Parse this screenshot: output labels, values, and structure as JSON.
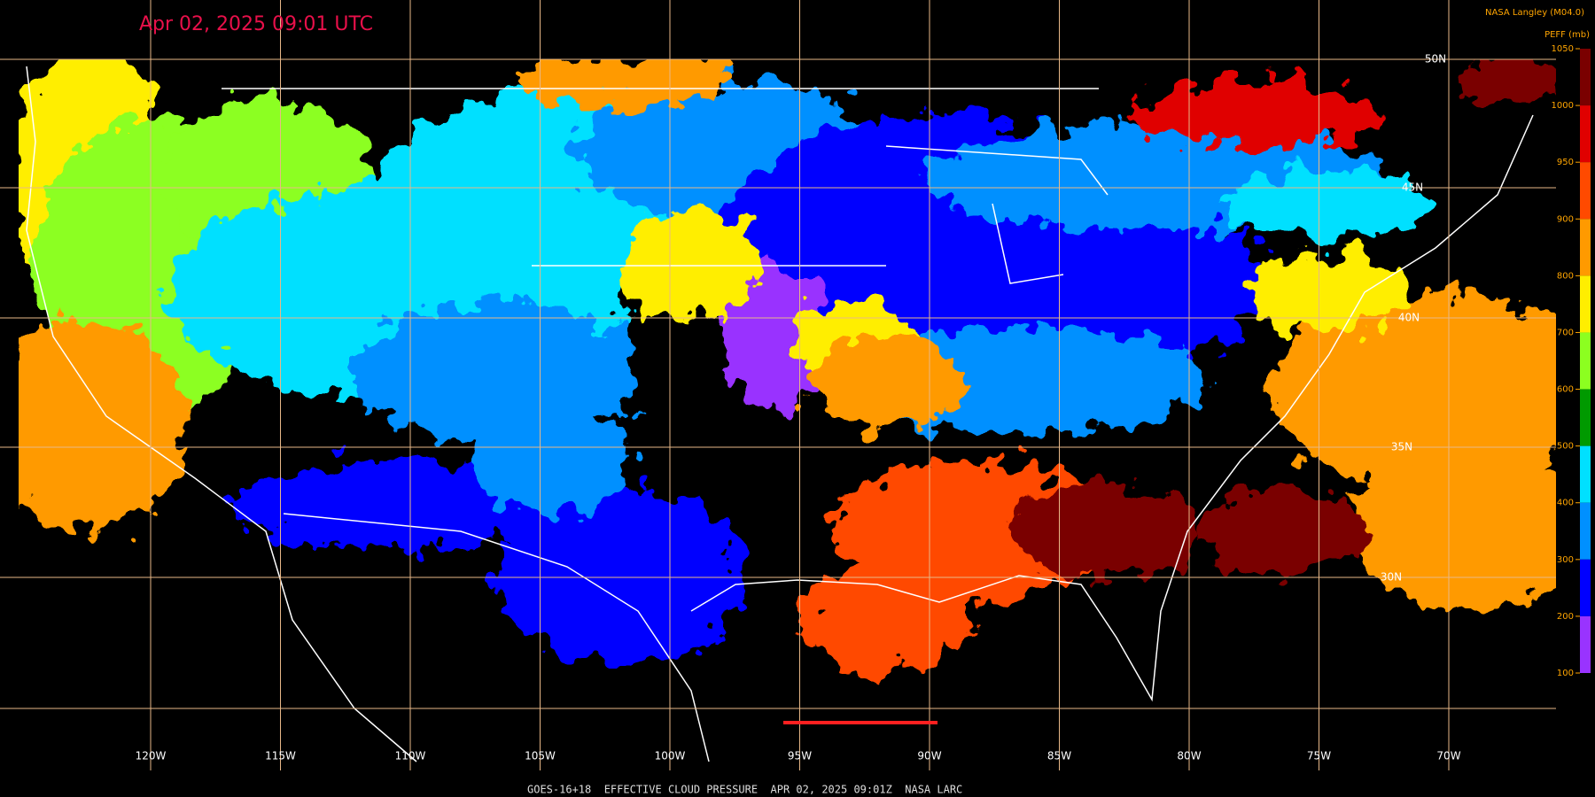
{
  "header": {
    "title": "Apr 02, 2025 09:01 UTC",
    "credit": "NASA Langley (M04.0)"
  },
  "colorbar": {
    "title": "PEFF (mb)",
    "ticks": [
      1050,
      1000,
      950,
      900,
      800,
      700,
      600,
      500,
      400,
      300,
      200,
      100
    ],
    "colors": [
      "#7a0000",
      "#e00000",
      "#ff4a00",
      "#ff9a00",
      "#ffee00",
      "#8cff20",
      "#009a00",
      "#00e0ff",
      "#0090ff",
      "#0000ff",
      "#9933ff"
    ]
  },
  "map": {
    "lon_labels": [
      "120W",
      "115W",
      "110W",
      "105W",
      "100W",
      "95W",
      "90W",
      "85W",
      "80W",
      "75W",
      "70W"
    ],
    "lat_labels": [
      "50N",
      "45N",
      "40N",
      "35N",
      "30N"
    ]
  },
  "caption": "GOES-16+18  EFFECTIVE CLOUD PRESSURE  APR 02, 2025 09:01Z  NASA LARC"
}
